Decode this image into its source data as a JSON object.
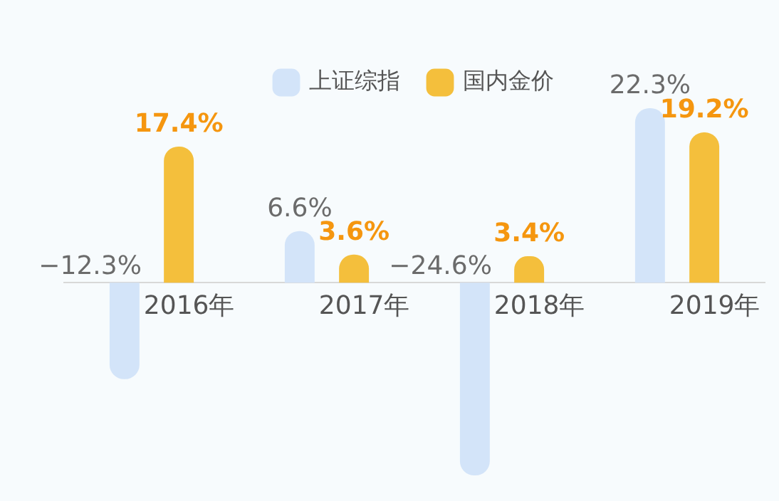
{
  "chart_data": {
    "type": "bar",
    "categories": [
      "2016年",
      "2017年",
      "2018年",
      "2019年"
    ],
    "series": [
      {
        "name": "上证综指",
        "color": "#d3e4f9",
        "values": [
          -12.3,
          6.6,
          -24.6,
          22.3
        ],
        "value_labels": [
          "−12.3%",
          "6.6%",
          "−24.6%",
          "22.3%"
        ]
      },
      {
        "name": "国内金价",
        "color": "#f4bf3c",
        "values": [
          17.4,
          3.6,
          3.4,
          19.2
        ],
        "value_labels": [
          "17.4%",
          "3.6%",
          "3.4%",
          "19.2%"
        ]
      }
    ],
    "legend": "top",
    "grid": false
  }
}
